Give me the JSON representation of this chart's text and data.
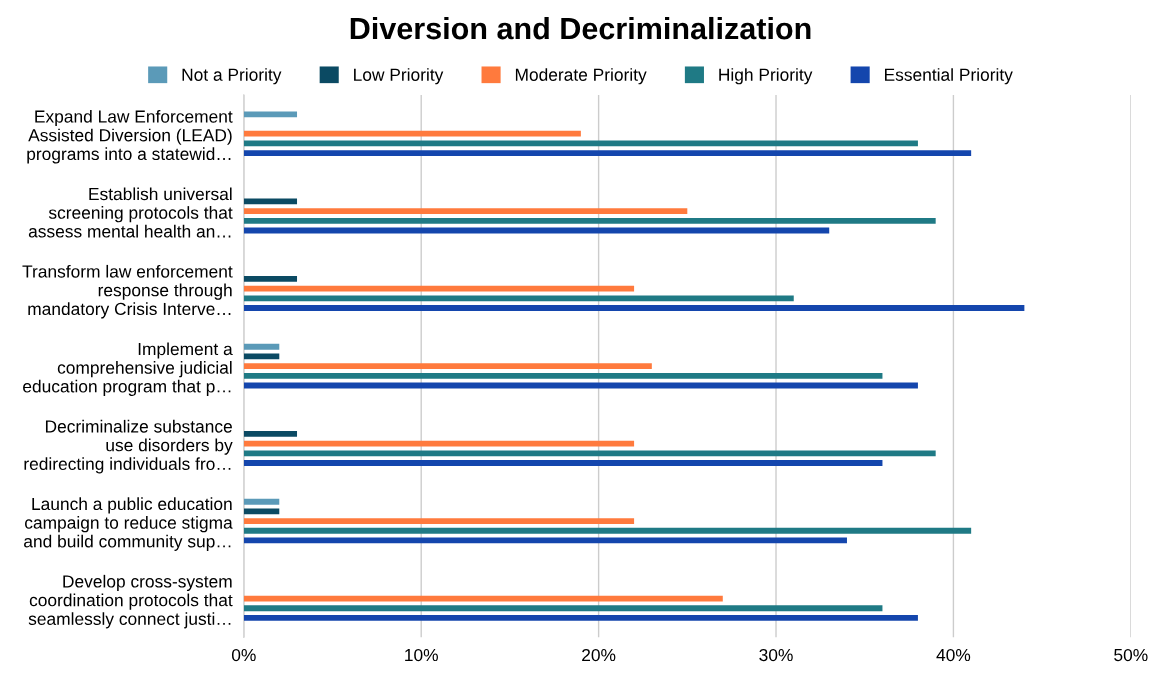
{
  "chart_data": {
    "type": "bar",
    "orientation": "horizontal",
    "title": "Diversion and Decriminalization",
    "categories": [
      "Expand Law Enforcement\nAssisted Diversion (LEAD)\nprograms into a statewid…",
      "Establish universal\nscreening protocols that\nassess mental health an…",
      "Transform law enforcement\nresponse through\nmandatory Crisis Interve…",
      "Implement a\ncomprehensive judicial\neducation program that p…",
      "Decriminalize substance\nuse disorders by\nredirecting individuals fro…",
      "Launch a public education\ncampaign to reduce stigma\nand build community sup…",
      "Develop cross-system\ncoordination protocols that\nseamlessly connect justi…"
    ],
    "series": [
      {
        "name": "Not a Priority",
        "color": "#5b9ab8",
        "values": [
          3,
          0,
          0,
          2,
          0,
          2,
          0
        ]
      },
      {
        "name": "Low Priority",
        "color": "#0b4a63",
        "values": [
          0,
          3,
          3,
          2,
          3,
          2,
          0
        ]
      },
      {
        "name": "Moderate Priority",
        "color": "#ff7a3d",
        "values": [
          19,
          25,
          22,
          23,
          22,
          22,
          27
        ]
      },
      {
        "name": "High Priority",
        "color": "#1f7a85",
        "values": [
          38,
          39,
          31,
          36,
          39,
          41,
          36
        ]
      },
      {
        "name": "Essential Priority",
        "color": "#1446ad",
        "values": [
          41,
          33,
          44,
          38,
          36,
          34,
          38
        ]
      }
    ],
    "xlim": [
      0,
      50
    ],
    "xticks": [
      {
        "value": 0,
        "label": "0%"
      },
      {
        "value": 10,
        "label": "10%"
      },
      {
        "value": 20,
        "label": "20%"
      },
      {
        "value": 30,
        "label": "30%"
      },
      {
        "value": 40,
        "label": "40%"
      },
      {
        "value": 50,
        "label": "50%"
      }
    ],
    "grid": "x",
    "legend": "top"
  }
}
